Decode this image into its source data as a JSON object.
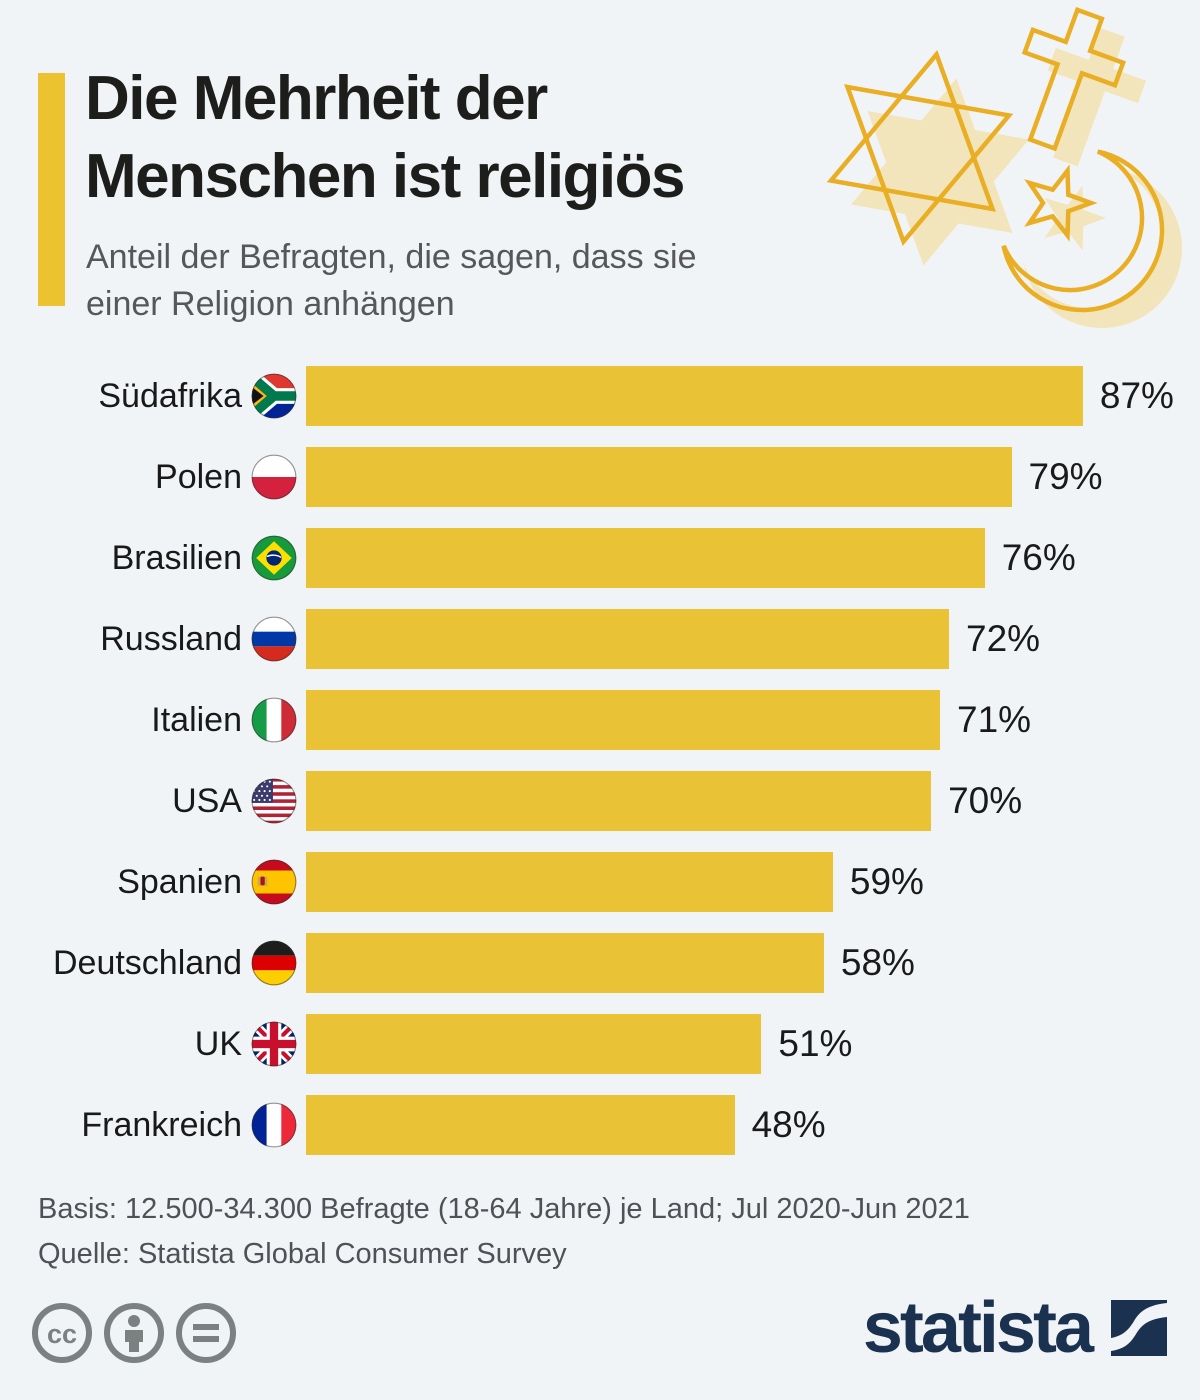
{
  "header": {
    "title_line1": "Die Mehrheit der",
    "title_line2": "Menschen ist religiös",
    "subtitle_line1": "Anteil der Befragten, die sagen, dass sie",
    "subtitle_line2": "einer Religion anhängen"
  },
  "chart_data": {
    "type": "bar",
    "orientation": "horizontal",
    "title": "Die Mehrheit der Menschen ist religiös",
    "subtitle": "Anteil der Befragten, die sagen, dass sie einer Religion anhängen",
    "unit": "%",
    "xlim": [
      0,
      100
    ],
    "grid": false,
    "legend": false,
    "categories": [
      "Südafrika",
      "Polen",
      "Brasilien",
      "Russland",
      "Italien",
      "USA",
      "Spanien",
      "Deutschland",
      "UK",
      "Frankreich"
    ],
    "values": [
      87,
      79,
      76,
      72,
      71,
      70,
      59,
      58,
      51,
      48
    ],
    "value_labels": [
      "87%",
      "79%",
      "76%",
      "72%",
      "71%",
      "70%",
      "59%",
      "58%",
      "51%",
      "48%"
    ],
    "flags": [
      "za",
      "pl",
      "br",
      "ru",
      "it",
      "us",
      "es",
      "de",
      "gb",
      "fr"
    ],
    "bar_color": "#E9C235"
  },
  "footer": {
    "basis": "Basis: 12.500-34.300 Befragte (18-64 Jahre) je Land; Jul 2020-Jun 2021",
    "quelle": "Quelle: Statista Global Consumer Survey"
  },
  "branding": {
    "logo_text": "statista",
    "logo_color": "#1A3150",
    "license_icons": [
      "cc-icon",
      "attribution-icon",
      "no-derivatives-icon"
    ]
  },
  "decoration": {
    "symbols": [
      "star-of-david",
      "christian-cross",
      "star-and-crescent"
    ],
    "accent_color": "#ECC230",
    "symbol_outline_color": "#E9AE24",
    "symbol_shadow_color": "#F3E5BB",
    "background_color": "#F1F4F7"
  }
}
